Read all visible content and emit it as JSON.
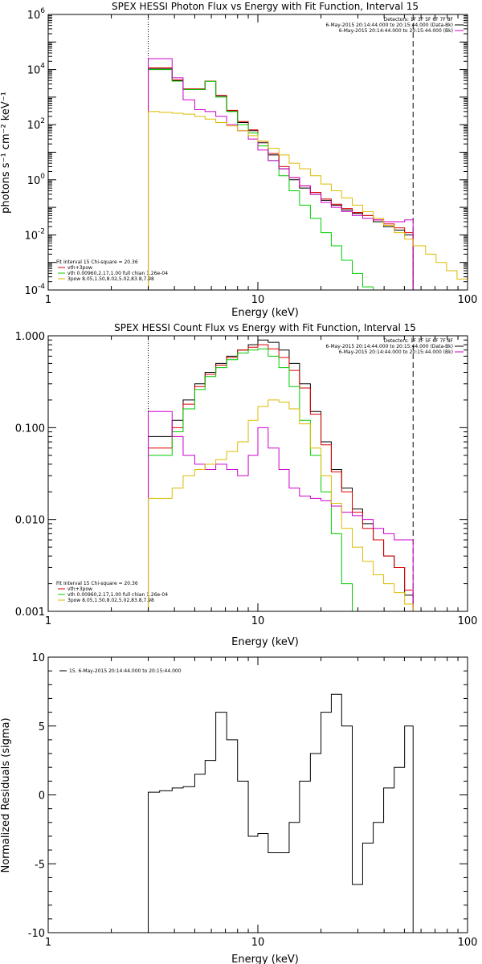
{
  "chart_data": [
    {
      "type": "line",
      "title": "SPEX HESSI Photon Flux vs Energy with Fit Function, Interval 15",
      "xlabel": "Energy (keV)",
      "ylabel": "photons s⁻¹ cm⁻² keV⁻¹",
      "xscale": "log",
      "yscale": "log",
      "xlim": [
        1,
        100
      ],
      "ylim": [
        0.0001,
        1000000
      ],
      "x_ticks": [
        {
          "v": 1,
          "label": "1"
        },
        {
          "v": 10,
          "label": "10"
        },
        {
          "v": 100,
          "label": "100"
        }
      ],
      "y_ticks": [
        {
          "v": 0.0001,
          "base": "10",
          "exp": "-4"
        },
        {
          "v": 0.01,
          "base": "10",
          "exp": "-2"
        },
        {
          "v": 1,
          "base": "10",
          "exp": "0"
        },
        {
          "v": 100,
          "base": "10",
          "exp": "2"
        },
        {
          "v": 10000,
          "base": "10",
          "exp": "4"
        },
        {
          "v": 1000000,
          "base": "10",
          "exp": "6"
        }
      ],
      "vlines": [
        {
          "x": 3,
          "style": "dotted"
        },
        {
          "x": 55,
          "style": "dashed"
        }
      ],
      "legend_top": {
        "placement": "top-right",
        "lines": [
          {
            "text": "Detectors: 1F 3F 5F 6F 7F 8F",
            "color": ""
          },
          {
            "text": "6-May-2015 20:14:44.000 to 20:15:44.000 (Data-Bk)",
            "color": "#000000"
          },
          {
            "text": "6-May-2015 20:14:44.000 to 20:15:44.000 (Bk)",
            "color": "#cc00cc"
          }
        ]
      },
      "legend_bottom": {
        "placement": "bottom-left",
        "lines": [
          {
            "text": "Fit Interval 15   Chi-square = 20.36",
            "color": ""
          },
          {
            "text": "vth+3pow",
            "color": "#dd0000"
          },
          {
            "text": "vth 0.00960,2.17,1.00  full chian 1.26e-04",
            "color": "#00cc00"
          },
          {
            "text": "3pow 8.05,1.50,8.02,5.02,83.8,7.98",
            "color": "#ddbb00"
          }
        ]
      },
      "edges": [
        3.0,
        3.4,
        3.9,
        4.4,
        5.0,
        5.6,
        6.3,
        7.1,
        8.0,
        9.0,
        10.0,
        11.2,
        12.6,
        14.1,
        15.8,
        17.8,
        20.0,
        22.4,
        25.1,
        28.2,
        31.6,
        35.5,
        39.8,
        44.7,
        50.1,
        55.0,
        63.1,
        70.8,
        79.4,
        89.1,
        100.0
      ],
      "series": [
        {
          "color": "#000000",
          "values": [
            10500,
            10500,
            4000,
            1900,
            1900,
            3800,
            1100,
            320,
            120,
            60,
            22,
            8,
            2.5,
            1.0,
            0.5,
            0.3,
            0.18,
            0.12,
            0.08,
            0.06,
            0.05,
            0.03,
            0.02,
            0.015,
            0.01,
            null,
            null,
            null,
            null,
            null
          ]
        },
        {
          "color": "#dd0000",
          "values": [
            11500,
            11500,
            4200,
            2000,
            2000,
            3800,
            1150,
            330,
            130,
            65,
            25,
            9,
            3,
            1.2,
            0.6,
            0.35,
            0.2,
            0.13,
            0.09,
            0.065,
            0.05,
            0.035,
            0.025,
            0.018,
            0.012,
            null,
            null,
            null,
            null,
            null
          ]
        },
        {
          "color": "#00cc00",
          "values": [
            10000,
            10000,
            3800,
            1900,
            1900,
            3700,
            1000,
            300,
            100,
            50,
            17,
            5,
            1.4,
            0.4,
            0.12,
            0.04,
            0.012,
            0.004,
            0.0012,
            0.0004,
            0.00013,
            null,
            null,
            null,
            null,
            null,
            null,
            null,
            null,
            null
          ]
        },
        {
          "color": "#cc00cc",
          "values": [
            25000,
            25000,
            5000,
            800,
            350,
            300,
            200,
            100,
            60,
            30,
            12,
            5,
            2.5,
            1.2,
            0.6,
            0.3,
            0.15,
            0.1,
            0.07,
            0.05,
            0.04,
            0.035,
            0.03,
            0.03,
            0.035,
            null,
            null,
            null,
            null,
            null
          ]
        },
        {
          "color": "#ddbb00",
          "values": [
            300,
            280,
            260,
            240,
            200,
            160,
            120,
            90,
            60,
            40,
            25,
            14,
            8,
            4,
            2.5,
            1.4,
            0.7,
            0.4,
            0.22,
            0.12,
            0.07,
            0.04,
            0.022,
            0.012,
            0.007,
            0.004,
            0.002,
            0.001,
            0.0005,
            0.00025
          ]
        }
      ]
    },
    {
      "type": "line",
      "title": "SPEX HESSI Count Flux vs Energy with Fit Function, Interval 15",
      "xlabel": "Energy (keV)",
      "ylabel": "",
      "xscale": "log",
      "yscale": "log",
      "xlim": [
        1,
        100
      ],
      "ylim": [
        0.001,
        1.0
      ],
      "x_ticks": [
        {
          "v": 1,
          "label": "1"
        },
        {
          "v": 10,
          "label": "10"
        },
        {
          "v": 100,
          "label": "100"
        }
      ],
      "y_ticks": [
        {
          "v": 0.001,
          "label": "0.001"
        },
        {
          "v": 0.01,
          "label": "0.010"
        },
        {
          "v": 0.1,
          "label": "0.100"
        },
        {
          "v": 1.0,
          "label": "1.000"
        }
      ],
      "vlines": [
        {
          "x": 3,
          "style": "dotted"
        },
        {
          "x": 55,
          "style": "dashed"
        }
      ],
      "legend_top": {
        "placement": "top-right",
        "lines": [
          {
            "text": "Detectors: 1F 3F 5F 6F 7F 8F",
            "color": ""
          },
          {
            "text": "6-May-2015 20:14:44.000 to 20:15:44.000 (Data-Bk)",
            "color": "#000000"
          },
          {
            "text": "6-May-2015 20:14:44.000 to 20:15:44.000 (Bk)",
            "color": "#cc00cc"
          }
        ]
      },
      "legend_bottom": {
        "placement": "bottom-left",
        "lines": [
          {
            "text": "Fit Interval 15   Chi-square = 20.36",
            "color": ""
          },
          {
            "text": "vth+3pow",
            "color": "#dd0000"
          },
          {
            "text": "vth 0.00960,2.17,1.00  full chian 1.26e-04",
            "color": "#00cc00"
          },
          {
            "text": "3pow 8.05,1.50,8.02,5.02,83.8,7.98",
            "color": "#ddbb00"
          }
        ]
      },
      "edges": [
        3.0,
        3.4,
        3.9,
        4.4,
        5.0,
        5.6,
        6.3,
        7.1,
        8.0,
        9.0,
        10.0,
        11.2,
        12.6,
        14.1,
        15.8,
        17.8,
        20.0,
        22.4,
        25.1,
        28.2,
        31.6,
        35.5,
        39.8,
        44.7,
        50.1,
        55.0
      ],
      "series": [
        {
          "color": "#000000",
          "values": [
            0.08,
            0.08,
            0.12,
            0.2,
            0.3,
            0.4,
            0.5,
            0.6,
            0.7,
            0.8,
            0.9,
            0.85,
            0.7,
            0.5,
            0.3,
            0.15,
            0.07,
            0.035,
            0.022,
            0.013,
            0.009,
            0.006,
            0.004,
            0.003,
            0.0015
          ]
        },
        {
          "color": "#dd0000",
          "values": [
            0.06,
            0.06,
            0.1,
            0.18,
            0.28,
            0.38,
            0.48,
            0.58,
            0.7,
            0.75,
            0.8,
            0.72,
            0.58,
            0.42,
            0.27,
            0.14,
            0.065,
            0.033,
            0.02,
            0.012,
            0.008,
            0.006,
            0.004,
            0.003,
            0.0017
          ]
        },
        {
          "color": "#00cc00",
          "values": [
            0.05,
            0.05,
            0.09,
            0.16,
            0.26,
            0.36,
            0.45,
            0.55,
            0.65,
            0.7,
            0.72,
            0.6,
            0.45,
            0.28,
            0.12,
            0.05,
            0.02,
            0.007,
            0.002,
            0.0007,
            null,
            null,
            null,
            null,
            null
          ]
        },
        {
          "color": "#cc00cc",
          "values": [
            0.15,
            0.15,
            0.08,
            0.05,
            0.04,
            0.035,
            0.04,
            0.035,
            0.03,
            0.05,
            0.1,
            0.06,
            0.035,
            0.022,
            0.018,
            0.017,
            0.016,
            0.014,
            0.012,
            0.011,
            0.01,
            0.008,
            0.007,
            0.006,
            0.006
          ]
        },
        {
          "color": "#ddbb00",
          "values": [
            0.017,
            0.017,
            0.022,
            0.03,
            0.035,
            0.04,
            0.045,
            0.055,
            0.07,
            0.12,
            0.17,
            0.2,
            0.19,
            0.16,
            0.11,
            0.06,
            0.03,
            0.015,
            0.008,
            0.005,
            0.0035,
            0.0025,
            0.002,
            0.0016,
            0.0012
          ]
        }
      ]
    },
    {
      "type": "line",
      "title": "",
      "xlabel": "Energy (keV)",
      "ylabel": "Normalized Residuals (sigma)",
      "xscale": "log",
      "yscale": "linear",
      "xlim": [
        1,
        100
      ],
      "ylim": [
        -10,
        10
      ],
      "x_ticks": [
        {
          "v": 1,
          "label": "1"
        },
        {
          "v": 10,
          "label": "10"
        },
        {
          "v": 100,
          "label": "100"
        }
      ],
      "y_ticks": [
        {
          "v": -10,
          "label": "-10"
        },
        {
          "v": -5,
          "label": "-5"
        },
        {
          "v": 0,
          "label": "0"
        },
        {
          "v": 5,
          "label": "5"
        },
        {
          "v": 10,
          "label": "10"
        }
      ],
      "vlines": [],
      "legend_top": {
        "placement": "top-left",
        "lines": [
          {
            "text": "15.  6-May-2015 20:14:44.000 to 20:15:44.000",
            "color": "#000000"
          }
        ]
      },
      "legend_bottom": {
        "placement": "",
        "lines": []
      },
      "edges": [
        3.0,
        3.4,
        3.9,
        4.4,
        5.0,
        5.6,
        6.3,
        7.1,
        8.0,
        9.0,
        10.0,
        11.2,
        12.6,
        14.1,
        15.8,
        17.8,
        20.0,
        22.4,
        25.1,
        28.2,
        31.6,
        35.5,
        39.8,
        44.7,
        50.1,
        55.0
      ],
      "series": [
        {
          "color": "#000000",
          "drop_ends": true,
          "values": [
            0.2,
            0.3,
            0.5,
            0.6,
            1.5,
            2.5,
            6.0,
            4.0,
            1.0,
            -3.0,
            -2.8,
            -4.2,
            -4.2,
            -2.0,
            1.0,
            3.0,
            6.0,
            7.3,
            5.0,
            -6.5,
            -3.5,
            -2.0,
            0.5,
            2.0,
            5.0
          ]
        }
      ]
    }
  ]
}
